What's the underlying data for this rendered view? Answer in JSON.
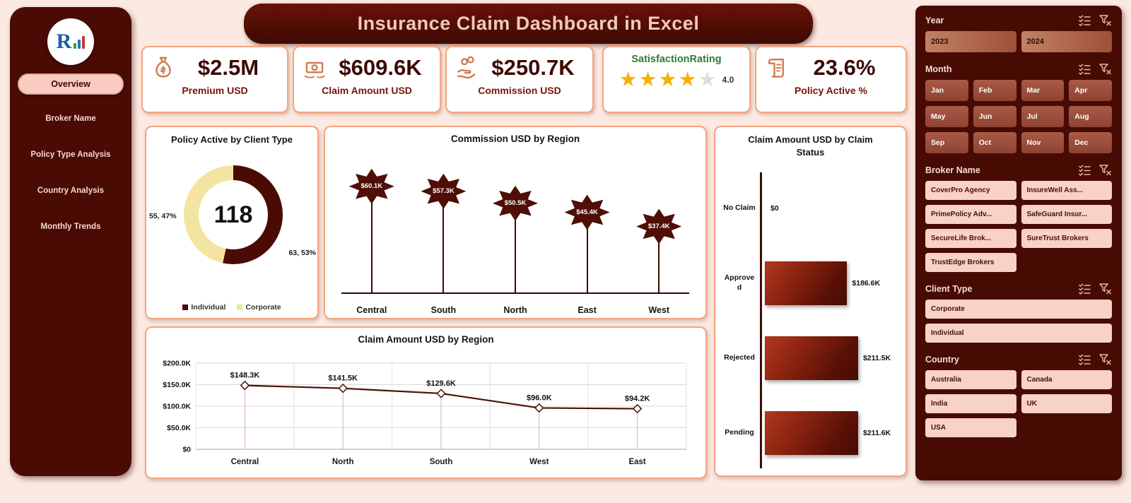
{
  "app": {
    "title": "Insurance Claim Dashboard in Excel",
    "logo_text": "R"
  },
  "nav": {
    "items": [
      {
        "label": "Overview",
        "active": true
      },
      {
        "label": "Broker Name",
        "active": false
      },
      {
        "label": "Policy Type Analysis",
        "active": false
      },
      {
        "label": "Country Analysis",
        "active": false
      },
      {
        "label": "Monthly Trends",
        "active": false
      }
    ]
  },
  "kpis": [
    {
      "type": "value",
      "icon": "money-bag-icon",
      "value": "$2.5M",
      "label": "Premium USD"
    },
    {
      "type": "value",
      "icon": "cash-payment-icon",
      "value": "$609.6K",
      "label": "Claim Amount USD"
    },
    {
      "type": "value",
      "icon": "commission-hand-icon",
      "value": "$250.7K",
      "label": "Commission USD"
    },
    {
      "type": "rating",
      "title": "SatisfactionRating",
      "rating": "4.0",
      "stars_filled": 4,
      "stars_total": 5
    },
    {
      "type": "value",
      "icon": "policy-scroll-icon",
      "value": "23.6%",
      "label": "Policy Active %"
    }
  ],
  "chart_data": [
    {
      "type": "pie",
      "title": "Policy Active by Client Type",
      "center_total": "118",
      "slices": [
        {
          "name": "Individual",
          "value": 63,
          "label": "63, 53%",
          "color": "#4a0b04"
        },
        {
          "name": "Corporate",
          "value": 55,
          "label": "55, 47%",
          "color": "#f3e5a1"
        }
      ],
      "legend_position": "bottom"
    },
    {
      "type": "lollipop",
      "title": "Commission USD by Region",
      "categories": [
        "Central",
        "South",
        "North",
        "East",
        "West"
      ],
      "values": [
        60.1,
        57.3,
        50.5,
        45.4,
        37.4
      ],
      "labels": [
        "$60.1K",
        "$57.3K",
        "$50.5K",
        "$45.4K",
        "$37.4K"
      ]
    },
    {
      "type": "bar",
      "orientation": "horizontal",
      "title": "Claim Amount USD by Claim Status",
      "categories": [
        "No Claim",
        "Approved",
        "Rejected",
        "Pending"
      ],
      "values": [
        0,
        186.6,
        211.5,
        211.6
      ],
      "labels": [
        "$0",
        "$186.6K",
        "$211.5K",
        "$211.6K"
      ]
    },
    {
      "type": "line",
      "title": "Claim Amount USD by Region",
      "categories": [
        "Central",
        "North",
        "South",
        "West",
        "East"
      ],
      "values": [
        148.3,
        141.5,
        129.6,
        96.0,
        94.2
      ],
      "labels": [
        "$148.3K",
        "$141.5K",
        "$129.6K",
        "$96.0K",
        "$94.2K"
      ],
      "y_ticks": [
        0,
        50,
        100,
        150,
        200
      ],
      "y_tick_labels": [
        "$0",
        "$50.0K",
        "$100.0K",
        "$150.0K",
        "$200.0K"
      ],
      "ylim": [
        0,
        200
      ],
      "grid": true
    }
  ],
  "slicers": [
    {
      "title": "Year",
      "style": "tan",
      "cols": 2,
      "items": [
        "2023",
        "2024"
      ]
    },
    {
      "title": "Month",
      "style": "red",
      "cols": 4,
      "items": [
        "Jan",
        "Feb",
        "Mar",
        "Apr",
        "May",
        "Jun",
        "Jul",
        "Aug",
        "Sep",
        "Oct",
        "Nov",
        "Dec"
      ]
    },
    {
      "title": "Broker Name",
      "style": "pink",
      "cols": 2,
      "items": [
        "CoverPro Agency",
        "InsureWell Ass...",
        "PrimePolicy Adv...",
        "SafeGuard Insur...",
        "SecureLife Brok...",
        "SureTrust Brokers",
        "TrustEdge Brokers"
      ]
    },
    {
      "title": "Client Type",
      "style": "pink",
      "cols": 1,
      "items": [
        "Corporate",
        "Individual"
      ]
    },
    {
      "title": "Country",
      "style": "pink",
      "cols": 2,
      "items": [
        "Australia",
        "Canada",
        "India",
        "UK",
        "USA"
      ]
    }
  ],
  "colors": {
    "maroon": "#4a0b04",
    "accent_border": "#f2a57e",
    "star_gold": "#f5b301",
    "corporate_yellow": "#f3e5a1",
    "satisfaction_green": "#2e7d32"
  }
}
